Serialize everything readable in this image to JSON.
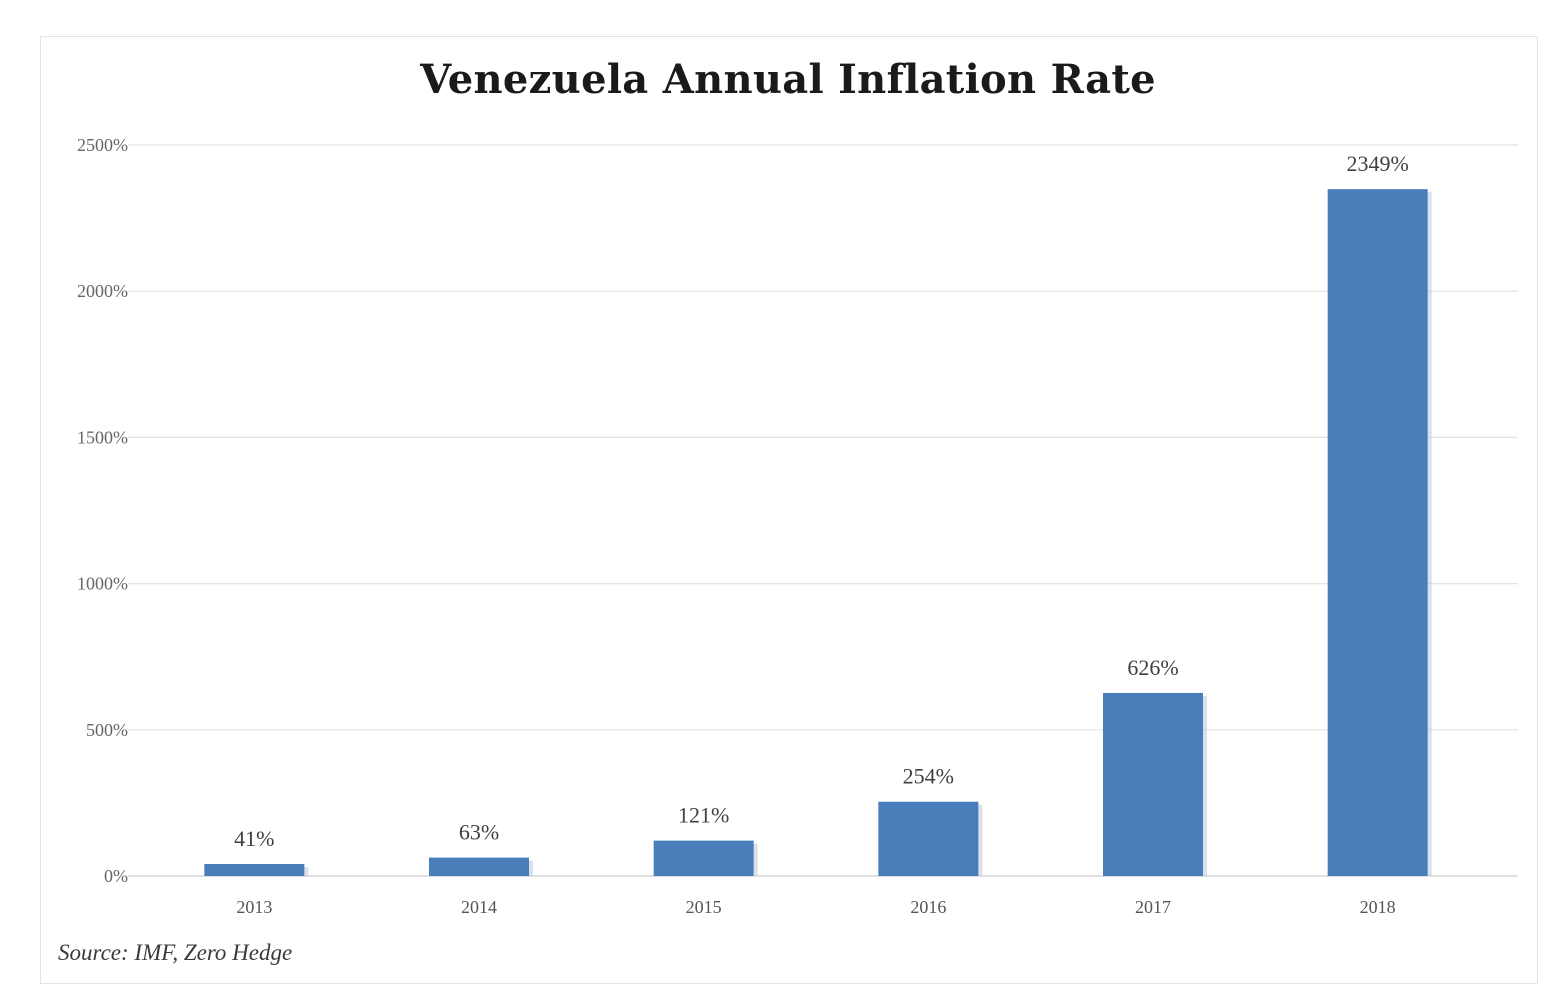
{
  "chart_data": {
    "type": "bar",
    "title": "Venezuela Annual Inflation Rate",
    "categories": [
      "2013",
      "2014",
      "2015",
      "2016",
      "2017",
      "2018"
    ],
    "values": [
      41,
      63,
      121,
      254,
      626,
      2349
    ],
    "data_labels": [
      "41%",
      "63%",
      "121%",
      "254%",
      "626%",
      "2349%"
    ],
    "ylim": [
      0,
      2500
    ],
    "yticks": [
      0,
      500,
      1000,
      1500,
      2000,
      2500
    ],
    "ytick_labels": [
      "0%",
      "500%",
      "1000%",
      "1500%",
      "2000%",
      "2500%"
    ],
    "xlabel": "",
    "ylabel": "",
    "grid": true,
    "legend": "none",
    "bar_color": "#4a7ebb",
    "source": "Source: IMF, Zero Hedge"
  }
}
